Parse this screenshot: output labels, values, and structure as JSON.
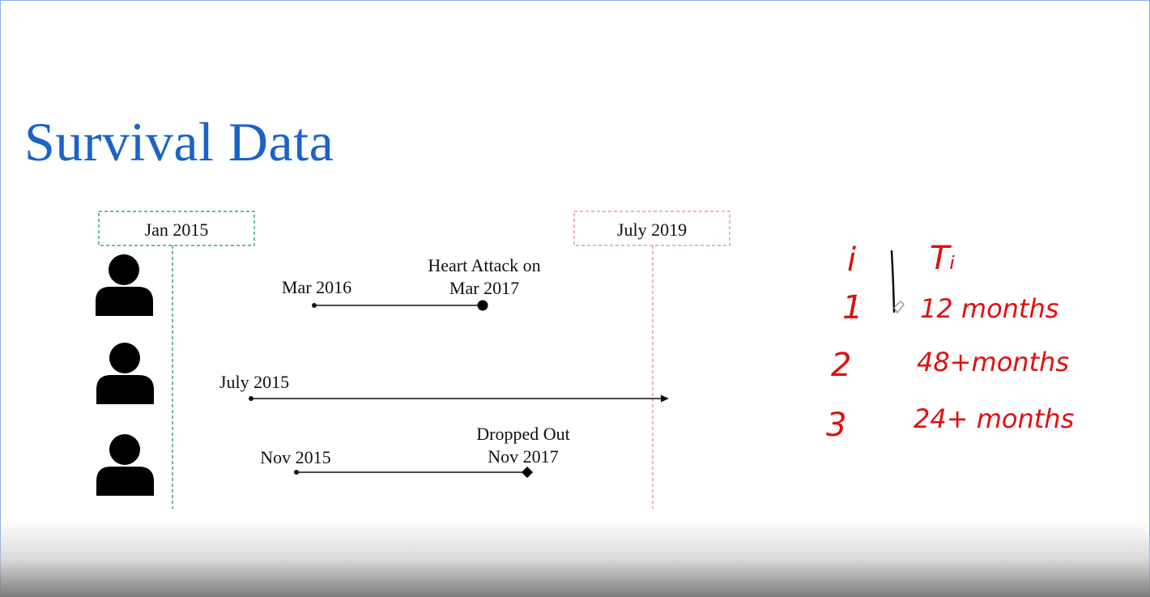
{
  "slide": {
    "title": "Survival Data"
  },
  "timeline": {
    "start_label": "Jan 2015",
    "end_label": "July 2019",
    "start_color": "#3aa57a",
    "end_color": "#e89aa8"
  },
  "patients": [
    {
      "start": "Mar 2016",
      "event_line1": "Heart Attack on",
      "event_line2": "Mar 2017",
      "end_marker": "circle"
    },
    {
      "start": "July 2015",
      "event_line1": "",
      "event_line2": "",
      "end_marker": "arrow"
    },
    {
      "start": "Nov 2015",
      "event_line1": "Dropped Out",
      "event_line2": "Nov 2017",
      "end_marker": "diamond"
    }
  ],
  "handwritten": {
    "color": "#e01010",
    "header_i": "i",
    "header_t": "Tᵢ",
    "rows": [
      {
        "i": "1",
        "t": "12 months"
      },
      {
        "i": "2",
        "t": "48+months"
      },
      {
        "i": "3",
        "t": "24+ months"
      }
    ]
  }
}
